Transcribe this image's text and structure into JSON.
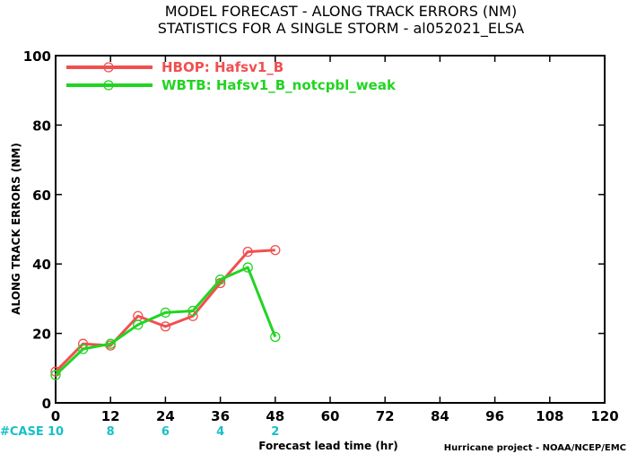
{
  "chart_data": {
    "type": "line",
    "title": "MODEL FORECAST - ALONG TRACK ERRORS (NM)",
    "subtitle": "STATISTICS FOR A SINGLE STORM - al052021_ELSA",
    "xlabel": "Forecast lead time (hr)",
    "ylabel": "ALONG TRACK ERRORS (NM)",
    "xlim": [
      0,
      120
    ],
    "ylim": [
      0,
      100
    ],
    "x_ticks": [
      0,
      12,
      24,
      36,
      48,
      60,
      72,
      84,
      96,
      108,
      120
    ],
    "y_ticks": [
      0,
      20,
      40,
      60,
      80,
      100
    ],
    "grid": false,
    "legend_position": "top-left",
    "series": [
      {
        "name": "HBOP: Hafsv1_B",
        "color": "#f05050",
        "x": [
          0,
          6,
          12,
          18,
          24,
          30,
          36,
          42,
          48
        ],
        "values": [
          9,
          17,
          16.5,
          25,
          22,
          25,
          34.5,
          43.5,
          44
        ]
      },
      {
        "name": "WBTB: Hafsv1_B_notcpbl_weak",
        "color": "#22d422",
        "x": [
          0,
          6,
          12,
          18,
          24,
          30,
          36,
          42,
          48
        ],
        "values": [
          8,
          15.5,
          17,
          22.5,
          26,
          26.5,
          35.5,
          39,
          19
        ]
      }
    ],
    "cases": {
      "label": "#CASE",
      "x": [
        0,
        12,
        24,
        36,
        48
      ],
      "values": [
        "10",
        "8",
        "6",
        "4",
        "2"
      ],
      "color": "#17bfc8"
    }
  },
  "footer": {
    "credit": "Hurricane project - NOAA/NCEP/EMC"
  }
}
